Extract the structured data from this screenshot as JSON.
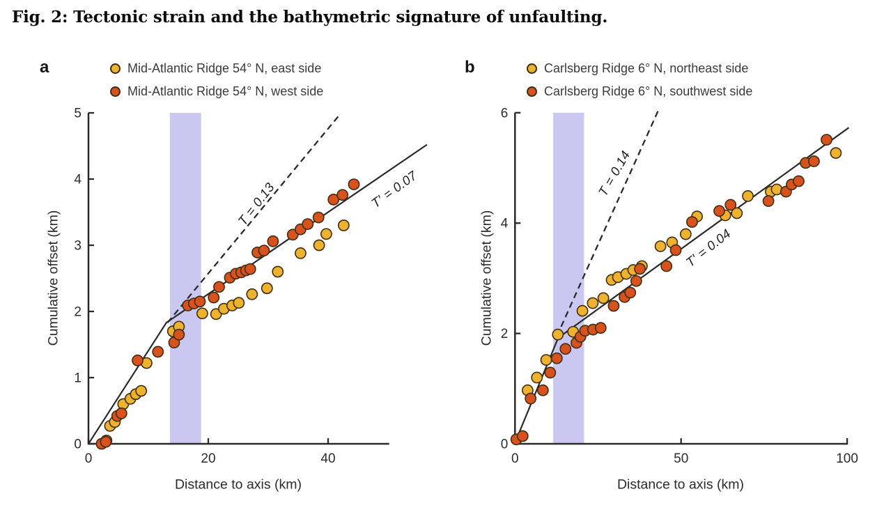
{
  "title": "Fig. 2: Tectonic strain and the bathymetric signature of unfaulting.",
  "colors": {
    "yellow": "#edb22e",
    "red": "#d7521d",
    "dot_stroke": "#3e2d12",
    "band": "#cac8f0",
    "line": "#2a2a2a",
    "tick_text": "#2b2b2b"
  },
  "chart_data": {
    "type": "scatter",
    "panels": [
      {
        "id": "a",
        "letter": "a",
        "legend": [
          {
            "label": "Mid-Atlantic Ridge 54° N, east side",
            "color_key": "yellow"
          },
          {
            "label": "Mid-Atlantic Ridge 54° N, west side",
            "color_key": "red"
          }
        ],
        "x_axis": {
          "label": "Distance to axis (km)",
          "ticks": [
            0,
            20,
            40
          ],
          "max": 50.2
        },
        "y_axis": {
          "label": "Cumulative offset (km)",
          "ticks": [
            0,
            1,
            2,
            3,
            4,
            5
          ],
          "max": 5
        },
        "band": [
          13.6,
          18.8
        ],
        "lines": {
          "solid": [
            [
              0,
              0
            ],
            [
              13,
              1.83
            ],
            [
              56.5,
              4.52
            ]
          ],
          "dashed": [
            [
              13.2,
              1.83
            ],
            [
              42,
              4.98
            ]
          ]
        },
        "line_labels": [
          {
            "text": "T = 0.13",
            "x": 28,
            "y": 3.62,
            "angle": -52
          },
          {
            "text": "T′ = 0.07",
            "x": 51,
            "y": 3.84,
            "angle": -36
          }
        ],
        "series": [
          {
            "name": "east side",
            "color_key": "yellow",
            "points": [
              [
                3.0,
                0.05
              ],
              [
                3.6,
                0.27
              ],
              [
                4.4,
                0.33
              ],
              [
                5.8,
                0.6
              ],
              [
                7.0,
                0.68
              ],
              [
                7.9,
                0.75
              ],
              [
                8.8,
                0.8
              ],
              [
                9.7,
                1.22
              ],
              [
                14.1,
                1.7
              ],
              [
                15.1,
                1.77
              ],
              [
                19.0,
                1.97
              ],
              [
                21.3,
                1.96
              ],
              [
                22.6,
                2.04
              ],
              [
                24.0,
                2.09
              ],
              [
                25.1,
                2.13
              ],
              [
                27.3,
                2.26
              ],
              [
                29.8,
                2.35
              ],
              [
                31.6,
                2.6
              ],
              [
                35.4,
                2.88
              ],
              [
                38.5,
                3.0
              ],
              [
                39.7,
                3.17
              ],
              [
                42.6,
                3.3
              ]
            ]
          },
          {
            "name": "west side",
            "color_key": "red",
            "points": [
              [
                2.2,
                0.0
              ],
              [
                2.9,
                0.03
              ],
              [
                4.8,
                0.42
              ],
              [
                5.5,
                0.46
              ],
              [
                8.2,
                1.26
              ],
              [
                11.6,
                1.39
              ],
              [
                14.3,
                1.53
              ],
              [
                15.1,
                1.65
              ],
              [
                16.6,
                2.09
              ],
              [
                17.6,
                2.12
              ],
              [
                18.6,
                2.15
              ],
              [
                20.9,
                2.21
              ],
              [
                21.8,
                2.37
              ],
              [
                23.6,
                2.51
              ],
              [
                24.6,
                2.57
              ],
              [
                25.5,
                2.59
              ],
              [
                26.3,
                2.62
              ],
              [
                27.0,
                2.64
              ],
              [
                28.2,
                2.89
              ],
              [
                29.3,
                2.92
              ],
              [
                30.8,
                3.06
              ],
              [
                34.1,
                3.16
              ],
              [
                35.4,
                3.24
              ],
              [
                36.6,
                3.32
              ],
              [
                38.4,
                3.42
              ],
              [
                40.9,
                3.69
              ],
              [
                42.4,
                3.76
              ],
              [
                44.3,
                3.92
              ]
            ]
          }
        ]
      },
      {
        "id": "b",
        "letter": "b",
        "legend": [
          {
            "label": "Carlsberg Ridge 6° N, northeast side",
            "color_key": "yellow"
          },
          {
            "label": "Carlsberg Ridge 6° N, southwest side",
            "color_key": "red"
          }
        ],
        "x_axis": {
          "label": "Distance to axis (km)",
          "ticks": [
            0,
            50,
            100
          ],
          "max": 100.2
        },
        "y_axis": {
          "label": "Cumulative offset (km)",
          "ticks": [
            0,
            2,
            4,
            6
          ],
          "max": 6
        },
        "band": [
          11.5,
          20.8
        ],
        "lines": {
          "solid": [
            [
              0,
              0.02
            ],
            [
              13,
              1.92
            ],
            [
              100.5,
              5.73
            ]
          ],
          "dashed": [
            [
              12.6,
              1.95
            ],
            [
              43.2,
              6.05
            ]
          ]
        },
        "line_labels": [
          {
            "text": "T = 0.14",
            "x": 30,
            "y": 4.9,
            "angle": -60
          },
          {
            "text": "T′ = 0.04",
            "x": 58.2,
            "y": 3.55,
            "angle": -38
          }
        ],
        "series": [
          {
            "name": "northeast side",
            "color_key": "yellow",
            "points": [
              [
                3.8,
                0.97
              ],
              [
                6.6,
                1.2
              ],
              [
                9.4,
                1.52
              ],
              [
                12.9,
                1.98
              ],
              [
                17.5,
                2.03
              ],
              [
                20.3,
                2.41
              ],
              [
                23.4,
                2.55
              ],
              [
                26.6,
                2.64
              ],
              [
                29.1,
                2.97
              ],
              [
                31.0,
                3.02
              ],
              [
                33.5,
                3.08
              ],
              [
                35.6,
                3.15
              ],
              [
                38.2,
                3.22
              ],
              [
                43.8,
                3.58
              ],
              [
                47.3,
                3.65
              ],
              [
                51.4,
                3.8
              ],
              [
                54.8,
                4.12
              ],
              [
                63.3,
                4.14
              ],
              [
                66.8,
                4.18
              ],
              [
                70.1,
                4.49
              ],
              [
                77.0,
                4.57
              ],
              [
                78.8,
                4.61
              ],
              [
                96.6,
                5.27
              ]
            ]
          },
          {
            "name": "southwest side",
            "color_key": "red",
            "points": [
              [
                0.4,
                0.08
              ],
              [
                2.3,
                0.14
              ],
              [
                4.7,
                0.82
              ],
              [
                8.4,
                0.97
              ],
              [
                10.6,
                1.29
              ],
              [
                12.6,
                1.55
              ],
              [
                15.2,
                1.72
              ],
              [
                18.5,
                1.83
              ],
              [
                19.7,
                1.94
              ],
              [
                21.1,
                2.05
              ],
              [
                23.5,
                2.07
              ],
              [
                25.8,
                2.1
              ],
              [
                29.7,
                2.5
              ],
              [
                33.0,
                2.66
              ],
              [
                34.7,
                2.74
              ],
              [
                36.5,
                2.95
              ],
              [
                37.6,
                3.17
              ],
              [
                45.6,
                3.22
              ],
              [
                48.4,
                3.51
              ],
              [
                53.3,
                4.02
              ],
              [
                61.5,
                4.22
              ],
              [
                64.9,
                4.33
              ],
              [
                76.3,
                4.4
              ],
              [
                81.6,
                4.57
              ],
              [
                83.3,
                4.7
              ],
              [
                85.4,
                4.76
              ],
              [
                87.5,
                5.09
              ],
              [
                90.0,
                5.12
              ],
              [
                93.8,
                5.51
              ]
            ]
          }
        ]
      }
    ]
  }
}
